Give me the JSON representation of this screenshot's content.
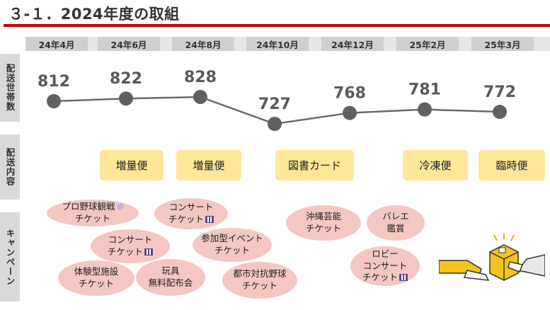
{
  "title": "３-１．2024年度の取組",
  "side_labels": {
    "households": "配送世帯数",
    "content": "配送内容",
    "campaign": "キャンペーン"
  },
  "chart_data": {
    "type": "line",
    "categories": [
      "24年4月",
      "24年6月",
      "24年8月",
      "24年10月",
      "24年12月",
      "25年2月",
      "25年3月"
    ],
    "series": [
      {
        "values": [
          812,
          822,
          828,
          727,
          768,
          781,
          772
        ]
      }
    ],
    "title": "",
    "xlabel": "",
    "ylabel": "配送世帯数",
    "ylim": [
      700,
      850
    ],
    "grid": false,
    "data_labels": true,
    "line_color": "#6b6b6b"
  },
  "deliveries": [
    {
      "label": "増量便"
    },
    {
      "label": "増量便"
    },
    {
      "label": "図書カード"
    },
    {
      "label": "冷凍便"
    },
    {
      "label": "臨時便"
    }
  ],
  "campaigns": [
    {
      "lines": [
        "プロ野球観戦",
        "チケット"
      ],
      "icon": "baseball-icon"
    },
    {
      "lines": [
        "コンサート",
        "チケット"
      ],
      "icon": "piano-icon"
    },
    {
      "lines": [
        "コンサート",
        "チケット"
      ],
      "icon": "piano-icon"
    },
    {
      "lines": [
        "参加型イベント",
        "チケット"
      ]
    },
    {
      "lines": [
        "体験型施設",
        "チケット"
      ]
    },
    {
      "lines": [
        "玩具",
        "無料配布会"
      ]
    },
    {
      "lines": [
        "都市対抗野球",
        "チケット"
      ]
    },
    {
      "lines": [
        "沖縄芸能",
        "チケット"
      ]
    },
    {
      "lines": [
        "バレエ",
        "鑑賞"
      ]
    },
    {
      "lines": [
        "ロビー",
        "コンサート",
        "チケット"
      ],
      "icon": "piano-icon"
    }
  ],
  "colors": {
    "accent_rule": "#c00000",
    "delivery_box": "#ffe699",
    "campaign_bubble": "#f4c7c3",
    "label_bg": "#d9d9d9"
  },
  "illustration": "package-handoff-icon"
}
